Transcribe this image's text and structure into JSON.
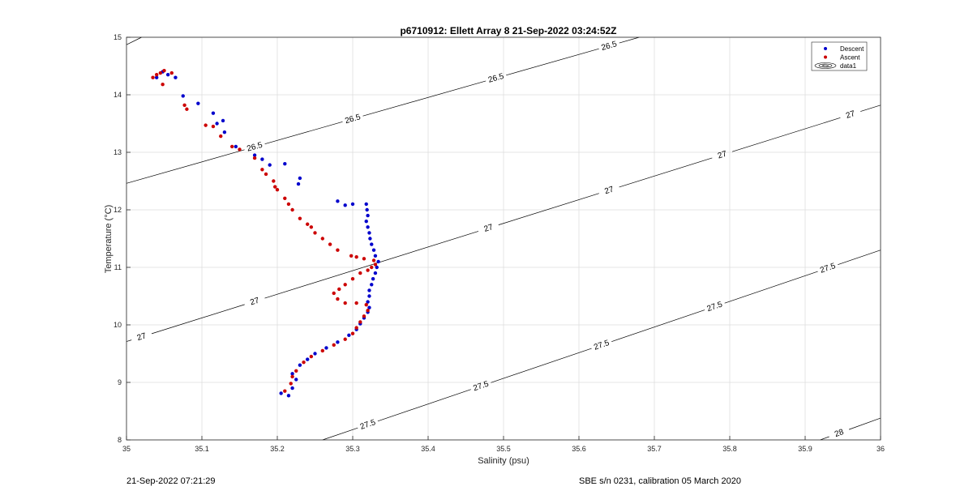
{
  "chart_data": {
    "type": "scatter",
    "title": "p6710912: Ellett Array 8 21-Sep-2022 03:24:52Z",
    "xlabel": "Salinity (psu)",
    "ylabel": "Temperature (°C)",
    "xlim": [
      35,
      36
    ],
    "ylim": [
      8,
      15
    ],
    "xticks": [
      "35",
      "35.1",
      "35.2",
      "35.3",
      "35.4",
      "35.5",
      "35.6",
      "35.7",
      "35.8",
      "35.9",
      "36"
    ],
    "yticks": [
      "8",
      "9",
      "10",
      "11",
      "12",
      "13",
      "14",
      "15"
    ],
    "grid": true,
    "legend_position": "top-right",
    "legend": [
      {
        "name": "Descent",
        "color": "#0000cc",
        "marker": "dot"
      },
      {
        "name": "Ascent",
        "color": "#cc0000",
        "marker": "dot"
      },
      {
        "name": "data1",
        "color": "#000000",
        "marker": "contour"
      }
    ],
    "series": [
      {
        "name": "Descent",
        "color": "#0000cc",
        "points": [
          [
            35.205,
            8.81
          ],
          [
            35.215,
            8.77
          ],
          [
            35.22,
            8.9
          ],
          [
            35.225,
            9.05
          ],
          [
            35.22,
            9.15
          ],
          [
            35.23,
            9.3
          ],
          [
            35.24,
            9.4
          ],
          [
            35.25,
            9.5
          ],
          [
            35.265,
            9.6
          ],
          [
            35.28,
            9.7
          ],
          [
            35.295,
            9.82
          ],
          [
            35.305,
            9.92
          ],
          [
            35.31,
            10.02
          ],
          [
            35.315,
            10.12
          ],
          [
            35.32,
            10.22
          ],
          [
            35.322,
            10.3
          ],
          [
            35.32,
            10.4
          ],
          [
            35.322,
            10.5
          ],
          [
            35.322,
            10.6
          ],
          [
            35.325,
            10.7
          ],
          [
            35.327,
            10.8
          ],
          [
            35.33,
            10.9
          ],
          [
            35.332,
            11.0
          ],
          [
            35.334,
            11.1
          ],
          [
            35.33,
            11.2
          ],
          [
            35.328,
            11.3
          ],
          [
            35.325,
            11.4
          ],
          [
            35.323,
            11.5
          ],
          [
            35.322,
            11.6
          ],
          [
            35.32,
            11.7
          ],
          [
            35.318,
            11.8
          ],
          [
            35.32,
            11.9
          ],
          [
            35.319,
            12.0
          ],
          [
            35.318,
            12.1
          ],
          [
            35.3,
            12.1
          ],
          [
            35.29,
            12.08
          ],
          [
            35.28,
            12.15
          ],
          [
            35.23,
            12.55
          ],
          [
            35.228,
            12.45
          ],
          [
            35.21,
            12.8
          ],
          [
            35.19,
            12.78
          ],
          [
            35.18,
            12.88
          ],
          [
            35.17,
            12.95
          ],
          [
            35.145,
            13.1
          ],
          [
            35.13,
            13.35
          ],
          [
            35.12,
            13.5
          ],
          [
            35.128,
            13.55
          ],
          [
            35.115,
            13.68
          ],
          [
            35.095,
            13.85
          ],
          [
            35.075,
            13.98
          ],
          [
            35.065,
            14.3
          ],
          [
            35.055,
            14.35
          ],
          [
            35.048,
            14.4
          ],
          [
            35.04,
            14.3
          ]
        ]
      },
      {
        "name": "Ascent",
        "color": "#cc0000",
        "points": [
          [
            35.21,
            8.85
          ],
          [
            35.218,
            8.98
          ],
          [
            35.22,
            9.1
          ],
          [
            35.225,
            9.2
          ],
          [
            35.235,
            9.35
          ],
          [
            35.245,
            9.45
          ],
          [
            35.26,
            9.55
          ],
          [
            35.275,
            9.65
          ],
          [
            35.29,
            9.75
          ],
          [
            35.3,
            9.85
          ],
          [
            35.305,
            9.95
          ],
          [
            35.31,
            10.05
          ],
          [
            35.315,
            10.15
          ],
          [
            35.32,
            10.25
          ],
          [
            35.318,
            10.35
          ],
          [
            35.305,
            10.38
          ],
          [
            35.29,
            10.38
          ],
          [
            35.28,
            10.45
          ],
          [
            35.275,
            10.55
          ],
          [
            35.282,
            10.62
          ],
          [
            35.29,
            10.7
          ],
          [
            35.3,
            10.8
          ],
          [
            35.31,
            10.9
          ],
          [
            35.32,
            10.95
          ],
          [
            35.325,
            11.0
          ],
          [
            35.33,
            11.05
          ],
          [
            35.328,
            11.12
          ],
          [
            35.315,
            11.15
          ],
          [
            35.305,
            11.18
          ],
          [
            35.298,
            11.2
          ],
          [
            35.28,
            11.3
          ],
          [
            35.27,
            11.4
          ],
          [
            35.26,
            11.5
          ],
          [
            35.25,
            11.6
          ],
          [
            35.245,
            11.7
          ],
          [
            35.24,
            11.75
          ],
          [
            35.23,
            11.85
          ],
          [
            35.22,
            12.0
          ],
          [
            35.215,
            12.1
          ],
          [
            35.21,
            12.2
          ],
          [
            35.2,
            12.35
          ],
          [
            35.197,
            12.4
          ],
          [
            35.195,
            12.5
          ],
          [
            35.185,
            12.62
          ],
          [
            35.18,
            12.7
          ],
          [
            35.17,
            12.9
          ],
          [
            35.15,
            13.05
          ],
          [
            35.14,
            13.1
          ],
          [
            35.125,
            13.28
          ],
          [
            35.115,
            13.45
          ],
          [
            35.105,
            13.47
          ],
          [
            35.08,
            13.75
          ],
          [
            35.077,
            13.82
          ],
          [
            35.06,
            14.38
          ],
          [
            35.05,
            14.42
          ],
          [
            35.045,
            14.38
          ],
          [
            35.04,
            14.35
          ],
          [
            35.035,
            14.3
          ],
          [
            35.048,
            14.18
          ]
        ]
      }
    ],
    "contours": [
      {
        "label": "26.5",
        "x": [
          35,
          35.68
        ],
        "y": [
          12.46,
          15.0
        ],
        "label_at": [
          35.17,
          35.3,
          35.49,
          35.64
        ]
      },
      {
        "label": "26.5",
        "x": [
          35,
          35.02
        ],
        "y": [
          14.87,
          15.0
        ],
        "label_at": []
      },
      {
        "label": "27",
        "x": [
          35,
          36
        ],
        "y": [
          9.71,
          13.82
        ],
        "label_at": [
          35.02,
          35.17,
          35.48,
          35.64,
          35.79,
          35.96
        ]
      },
      {
        "label": "27.5",
        "x": [
          35.26,
          36
        ],
        "y": [
          8.0,
          11.3
        ],
        "label_at": [
          35.32,
          35.47,
          35.63,
          35.78,
          35.93
        ]
      },
      {
        "label": "28",
        "x": [
          35.92,
          36
        ],
        "y": [
          8.0,
          8.38
        ],
        "label_at": [
          35.945
        ]
      }
    ]
  },
  "footer": {
    "left": "21-Sep-2022 07:21:29",
    "right": "SBE s/n 0231, calibration 05 March 2020"
  }
}
